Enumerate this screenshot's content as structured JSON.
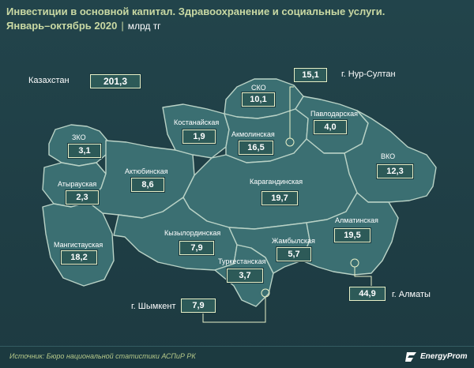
{
  "header": {
    "title": "Инвестиции в основной капитал. Здравоохранение и социальные услуги.",
    "period": "Январь–октябрь 2020",
    "separator": "|",
    "unit": "млрд тг"
  },
  "total": {
    "label": "Казахстан",
    "value": "201,3"
  },
  "regions": [
    {
      "name": "ЗКО",
      "value": "3,1"
    },
    {
      "name": "Атырауская",
      "value": "2,3"
    },
    {
      "name": "Мангистауская",
      "value": "18,2"
    },
    {
      "name": "Актюбинская",
      "value": "8,6"
    },
    {
      "name": "Костанайская",
      "value": "1,9"
    },
    {
      "name": "СКО",
      "value": "10,1"
    },
    {
      "name": "Акмолинская",
      "value": "16,5"
    },
    {
      "name": "Павлодарская",
      "value": "4,0"
    },
    {
      "name": "ВКО",
      "value": "12,3"
    },
    {
      "name": "Карагандинская",
      "value": "19,7"
    },
    {
      "name": "Кызылординская",
      "value": "7,9"
    },
    {
      "name": "Туркестанская",
      "value": "3,7"
    },
    {
      "name": "Жамбылская",
      "value": "5,7"
    },
    {
      "name": "Алматинская",
      "value": "19,5"
    }
  ],
  "cities": [
    {
      "name": "г. Нур-Султан",
      "value": "15,1"
    },
    {
      "name": "г. Алматы",
      "value": "44,9"
    },
    {
      "name": "г. Шымкент",
      "value": "7,9"
    }
  ],
  "footer": {
    "source": "Источник: Бюро национальной статистики АСПиР РК",
    "brand": "EnergyProm"
  },
  "colors": {
    "region_fill": "#3b6f72",
    "region_border": "#b9d2c6",
    "background": "#1f3f46",
    "title": "#c9d9a3"
  }
}
